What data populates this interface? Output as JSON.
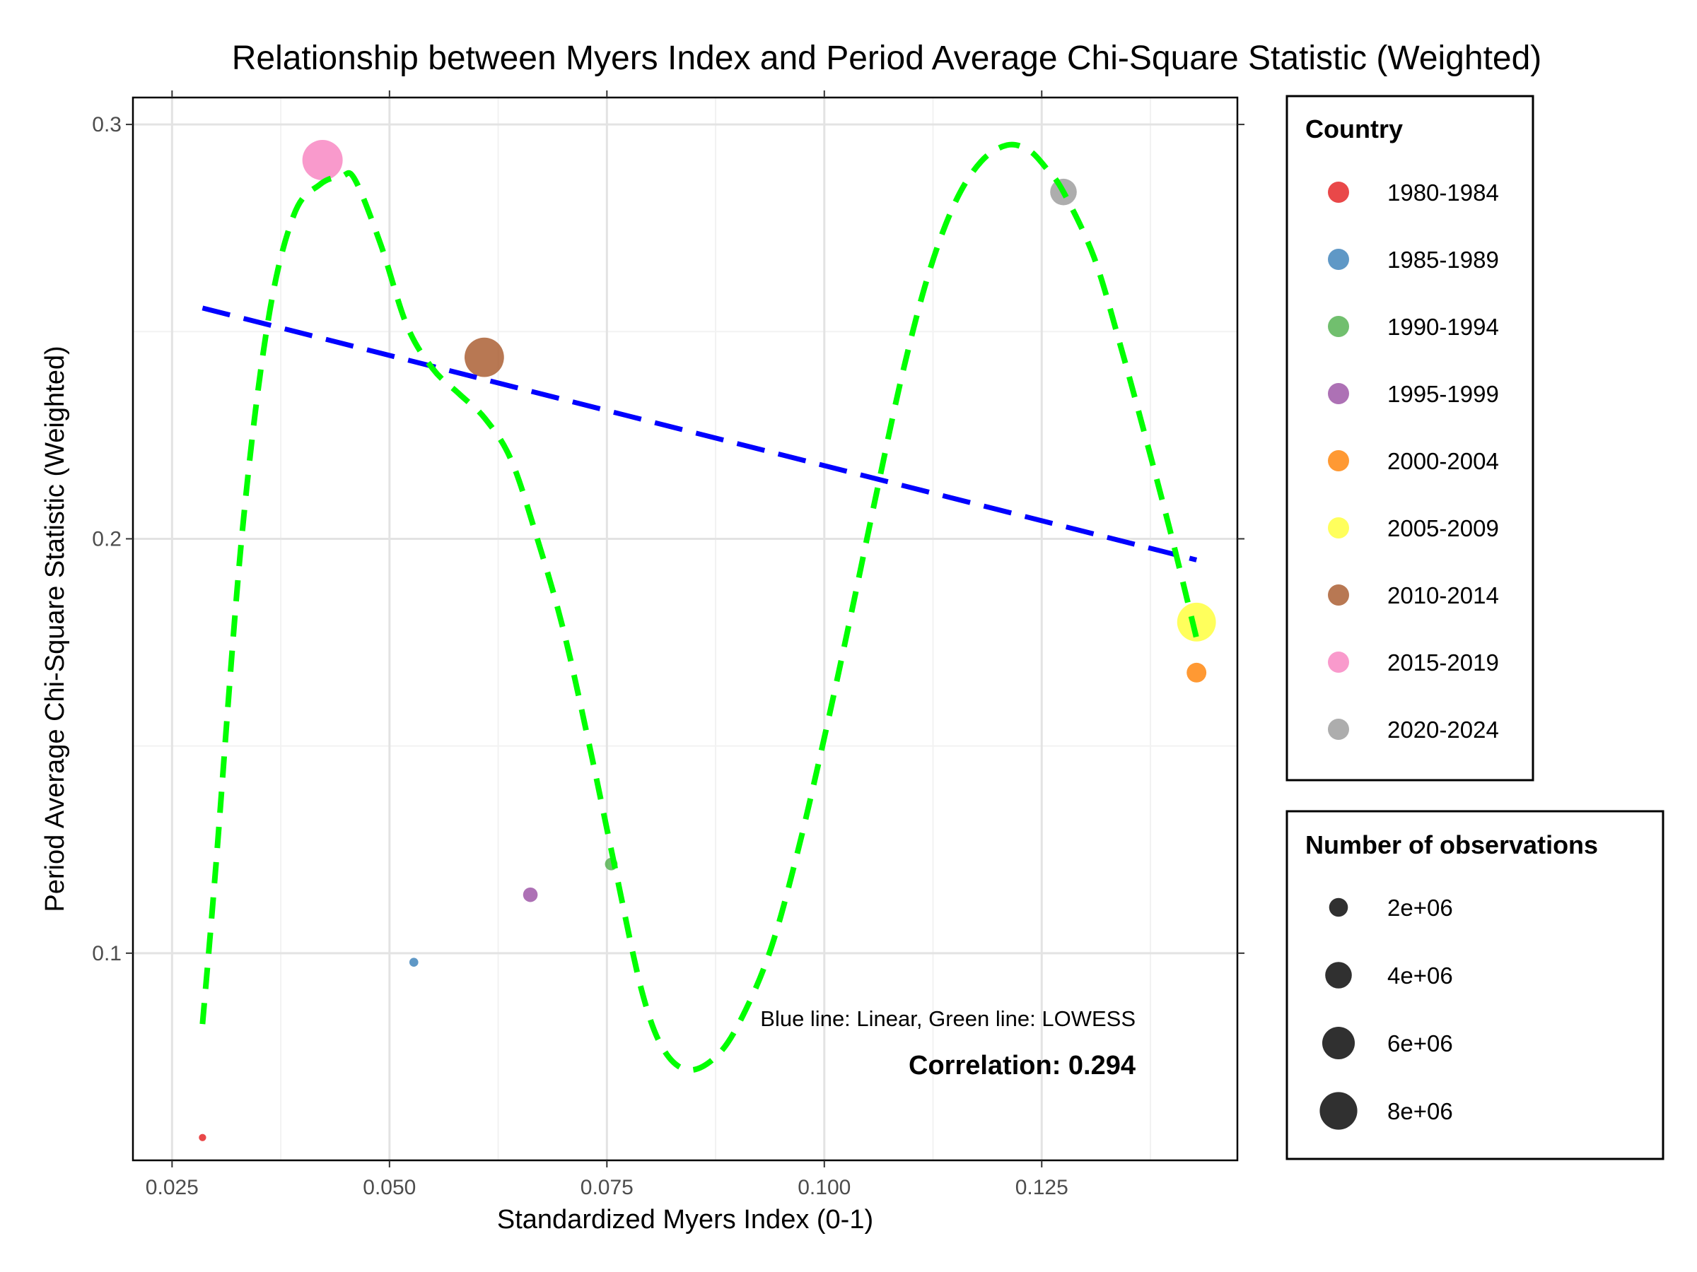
{
  "chart_data": {
    "type": "scatter",
    "title": "Relationship between Myers Index and Period Average Chi-Square Statistic (Weighted)",
    "xlabel": "Standardized Myers Index (0-1)",
    "ylabel": "Period Average Chi-Square Statistic (Weighted)",
    "xlim": [
      0.0205,
      0.1475
    ],
    "ylim": [
      0.05,
      0.3065
    ],
    "x_ticks": [
      0.025,
      0.05,
      0.075,
      0.1,
      0.125
    ],
    "x_tick_labels": [
      "0.025",
      "0.050",
      "0.075",
      "0.100",
      "0.125"
    ],
    "y_ticks": [
      0.1,
      0.2,
      0.3
    ],
    "y_tick_labels": [
      "0.1",
      "0.2",
      "0.3"
    ],
    "grid": true,
    "points": [
      {
        "period": "1980-1984",
        "x": 0.0285,
        "y": 0.0555,
        "n": 300000,
        "color": "#E41A1C"
      },
      {
        "period": "1985-1989",
        "x": 0.0528,
        "y": 0.0978,
        "n": 450000,
        "color": "#377EB8"
      },
      {
        "period": "1990-1994",
        "x": 0.0755,
        "y": 0.1215,
        "n": 900000,
        "color": "#4DAF4A"
      },
      {
        "period": "1995-1999",
        "x": 0.0662,
        "y": 0.1141,
        "n": 1200000,
        "color": "#984EA3"
      },
      {
        "period": "2000-2004",
        "x": 0.1428,
        "y": 0.1677,
        "n": 2200000,
        "color": "#FF7F00"
      },
      {
        "period": "2005-2009",
        "x": 0.1428,
        "y": 0.1799,
        "n": 8500000,
        "color": "#FFFF33"
      },
      {
        "period": "2010-2014",
        "x": 0.0609,
        "y": 0.2438,
        "n": 8800000,
        "color": "#A65628"
      },
      {
        "period": "2015-2019",
        "x": 0.0423,
        "y": 0.2914,
        "n": 9200000,
        "color": "#F781BF"
      },
      {
        "period": "2020-2024",
        "x": 0.1275,
        "y": 0.2837,
        "n": 4000000,
        "color": "#999999"
      }
    ],
    "linear_fit": {
      "color": "#0000FF",
      "x": [
        0.0285,
        0.1428
      ],
      "y": [
        0.2557,
        0.1949
      ]
    },
    "lowess_fit": {
      "color": "#00FF00",
      "x": [
        0.0285,
        0.03,
        0.033,
        0.036,
        0.039,
        0.042,
        0.0445,
        0.046,
        0.049,
        0.052,
        0.055,
        0.058,
        0.061,
        0.064,
        0.067,
        0.07,
        0.073,
        0.076,
        0.079,
        0.0815,
        0.0845,
        0.088,
        0.091,
        0.094,
        0.097,
        0.1,
        0.103,
        0.106,
        0.109,
        0.112,
        0.115,
        0.118,
        0.121,
        0.1235,
        0.1255,
        0.1275,
        0.131,
        0.134,
        0.137,
        0.14,
        0.1428
      ],
      "y": [
        0.0829,
        0.12,
        0.2,
        0.252,
        0.2781,
        0.2855,
        0.2875,
        0.2868,
        0.271,
        0.2515,
        0.241,
        0.235,
        0.229,
        0.219,
        0.2,
        0.178,
        0.15,
        0.12,
        0.091,
        0.0768,
        0.0718,
        0.076,
        0.0865,
        0.102,
        0.125,
        0.152,
        0.181,
        0.211,
        0.24,
        0.264,
        0.281,
        0.291,
        0.295,
        0.2938,
        0.2895,
        0.2837,
        0.268,
        0.247,
        0.224,
        0.2,
        0.176
      ]
    },
    "annotations": {
      "fit_note": "Blue line: Linear, Green line: LOWESS",
      "correlation": "Correlation: 0.294"
    },
    "legends": {
      "color": {
        "title": "Country",
        "placement": "right-top",
        "items": [
          {
            "label": "1980-1984",
            "color": "#E41A1C"
          },
          {
            "label": "1985-1989",
            "color": "#377EB8"
          },
          {
            "label": "1990-1994",
            "color": "#4DAF4A"
          },
          {
            "label": "1995-1999",
            "color": "#984EA3"
          },
          {
            "label": "2000-2004",
            "color": "#FF7F00"
          },
          {
            "label": "2005-2009",
            "color": "#FFFF33"
          },
          {
            "label": "2010-2014",
            "color": "#A65628"
          },
          {
            "label": "2015-2019",
            "color": "#F781BF"
          },
          {
            "label": "2020-2024",
            "color": "#999999"
          }
        ]
      },
      "size": {
        "title": "Number of observations",
        "placement": "right-bottom",
        "items": [
          {
            "label": "2e+06",
            "value": 2000000
          },
          {
            "label": "4e+06",
            "value": 4000000
          },
          {
            "label": "6e+06",
            "value": 6000000
          },
          {
            "label": "8e+06",
            "value": 8000000
          }
        ]
      }
    }
  }
}
